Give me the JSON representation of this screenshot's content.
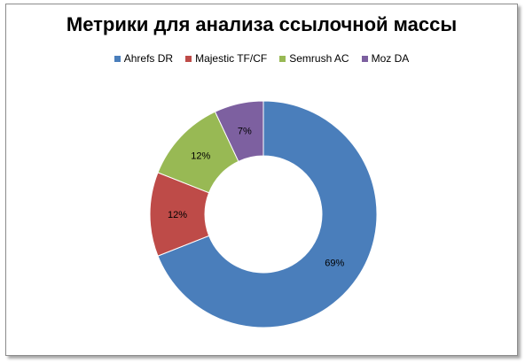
{
  "chart_data": {
    "type": "pie",
    "variant": "doughnut",
    "title": "Метрики для анализа ссылочной массы",
    "legend_position": "top",
    "categories": [
      "Ahrefs DR",
      "Majestic TF/CF",
      "Semrush AC",
      "Moz DA"
    ],
    "values": [
      69,
      12,
      12,
      7
    ],
    "data_labels": [
      "69%",
      "12%",
      "12%",
      "7%"
    ],
    "colors": [
      "#4a7ebb",
      "#be4b48",
      "#98b954",
      "#7d60a0"
    ]
  }
}
